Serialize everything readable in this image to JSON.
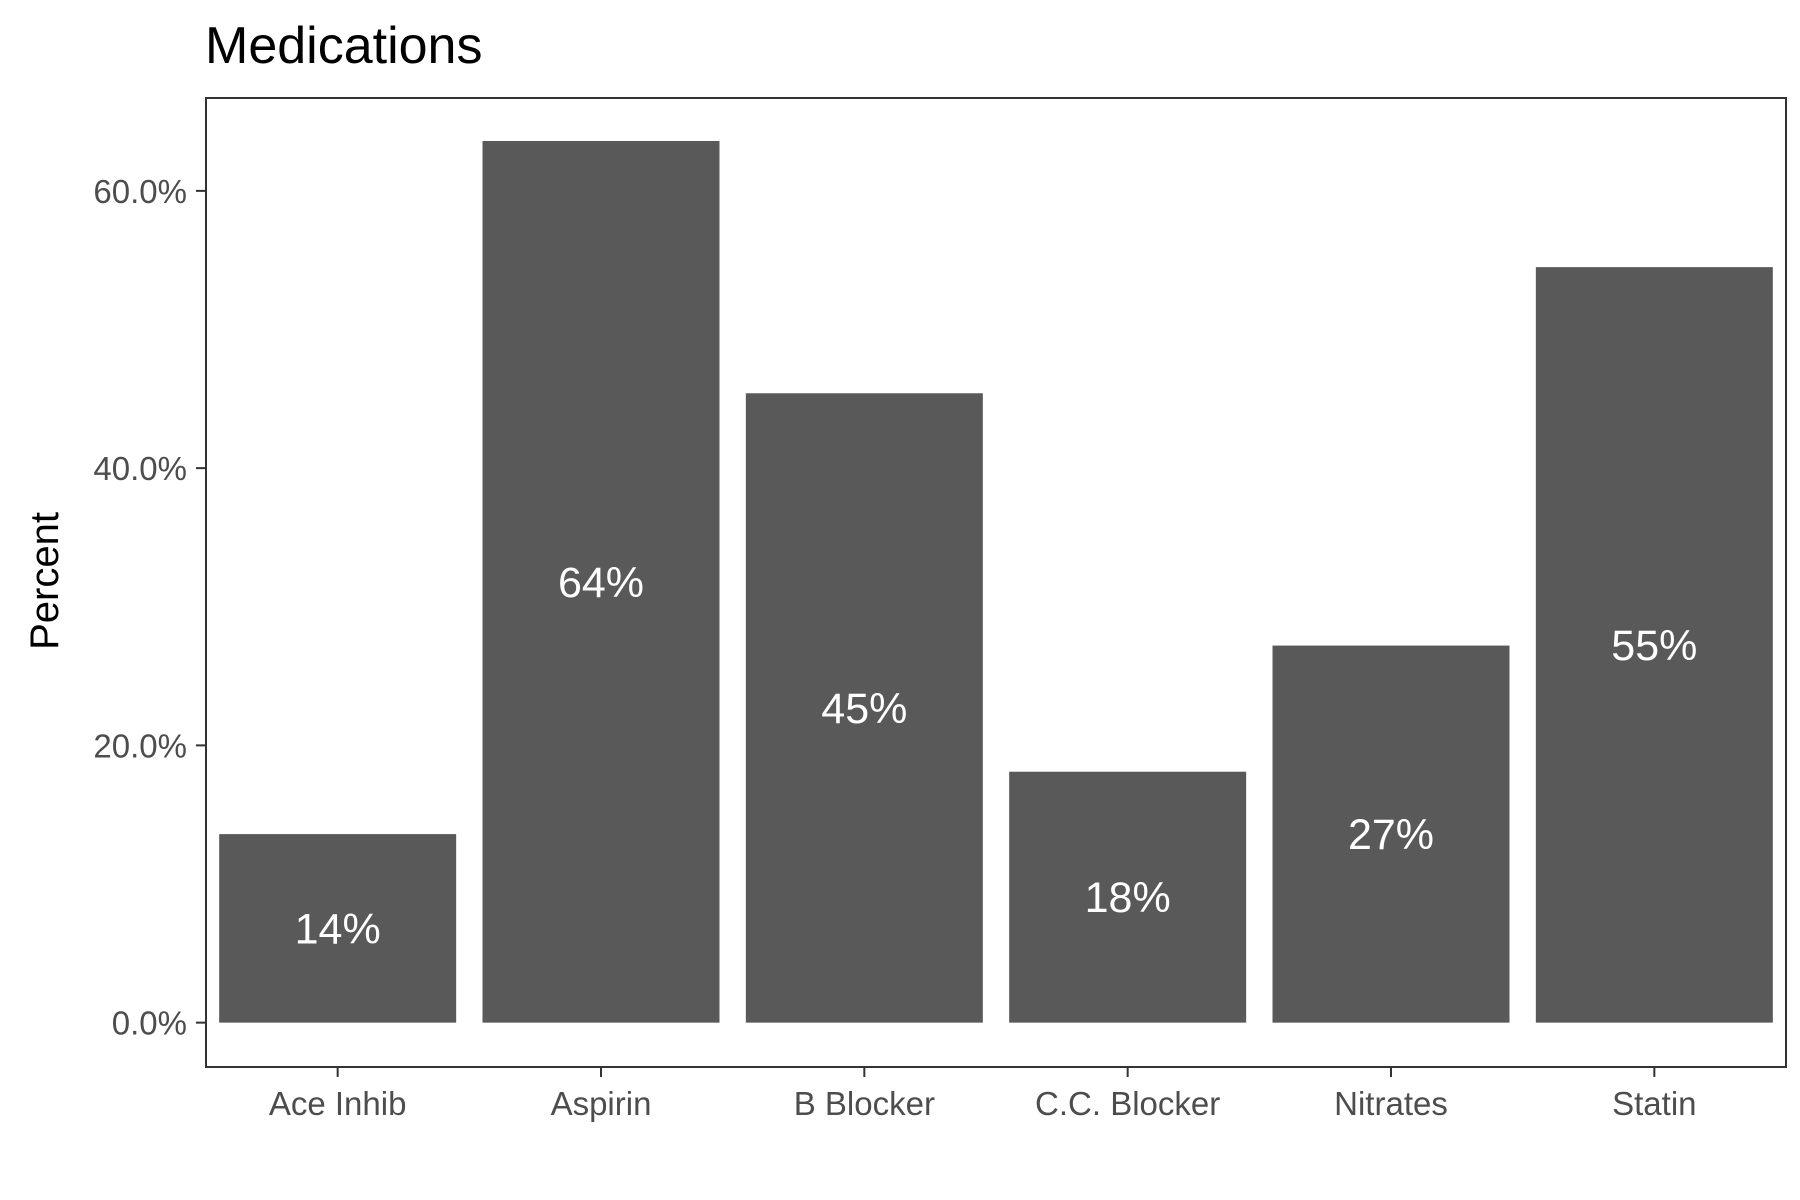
{
  "chart_data": {
    "type": "bar",
    "title": "Medications",
    "xlabel": "",
    "ylabel": "Percent",
    "categories": [
      "Ace Inhib",
      "Aspirin",
      "B Blocker",
      "C.C. Blocker",
      "Nitrates",
      "Statin"
    ],
    "values": [
      13.6,
      63.6,
      45.4,
      18.1,
      27.2,
      54.5
    ],
    "value_labels": [
      "14%",
      "64%",
      "45%",
      "18%",
      "27%",
      "55%"
    ],
    "y_ticks": [
      0,
      20,
      40,
      60
    ],
    "y_tick_labels": [
      "0.0%",
      "20.0%",
      "40.0%",
      "60.0%"
    ],
    "ylim": [
      -3.2,
      66.7
    ],
    "grid": false,
    "legend": "none",
    "colors": {
      "bar": "#595959",
      "bar_label": "#ffffff",
      "axis": "#333333",
      "tick_label": "#4d4d4d"
    }
  }
}
